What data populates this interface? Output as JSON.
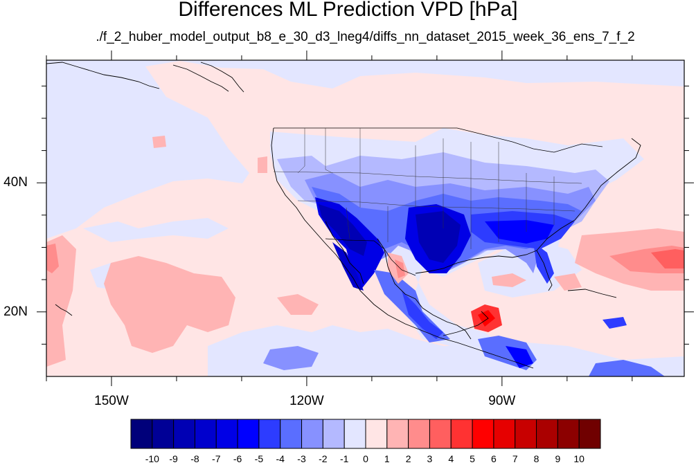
{
  "title": "Differences ML Prediction VPD [hPa]",
  "subtitle": "./f_2_huber_model_output_b8_e_30_d3_lneg4/diffs_nn_dataset_2015_week_36_ens_7_f_2",
  "map": {
    "projection": "cylindrical-equidistant",
    "lon_range": [
      -160,
      -62
    ],
    "lat_range": [
      10,
      59
    ],
    "lon_ticks": [
      {
        "value": -150,
        "label": "150W"
      },
      {
        "value": -120,
        "label": "120W"
      },
      {
        "value": -90,
        "label": "90W"
      }
    ],
    "lat_ticks": [
      {
        "value": 40,
        "label": "40N"
      },
      {
        "value": 20,
        "label": "20N"
      }
    ],
    "features": [
      "coastlines",
      "country-borders",
      "us-state-borders"
    ]
  },
  "colorbar": {
    "labels": [
      "-10",
      "-9",
      "-8",
      "-7",
      "-6",
      "-5",
      "-4",
      "-3",
      "-2",
      "-1",
      "0",
      "1",
      "2",
      "3",
      "4",
      "5",
      "6",
      "7",
      "8",
      "9",
      "10"
    ],
    "colors": [
      "#00007a",
      "#000096",
      "#0000b4",
      "#0000cd",
      "#0000e6",
      "#0000ff",
      "#2d3cff",
      "#5a6eff",
      "#8791ff",
      "#b4b9ff",
      "#e3e6ff",
      "#ffe5e5",
      "#ffb4b4",
      "#ff8c8c",
      "#ff5f5f",
      "#ff3232",
      "#ff0000",
      "#e60000",
      "#c80000",
      "#aa0000",
      "#8c0000",
      "#700000"
    ]
  }
}
